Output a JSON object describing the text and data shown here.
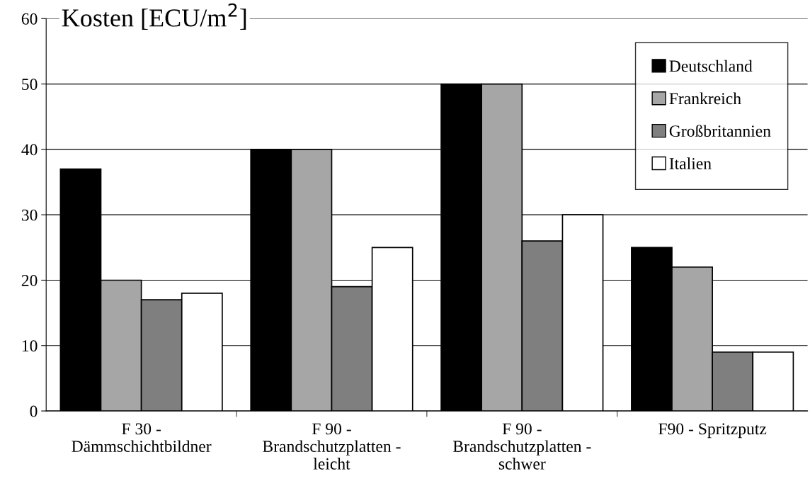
{
  "chart_data": {
    "type": "bar",
    "title": "Kosten [ECU/m$^{2}$]",
    "categories": [
      "F 30 -\nDämmschichtbildner",
      "F 90 -\nBrandschutzplatten -\nleicht",
      "F 90 -\nBrandschutzplatten -\nschwer",
      "F90 - Spritzputz"
    ],
    "series": [
      {
        "name": "Deutschland",
        "color": "#000000",
        "values": [
          37,
          40,
          50,
          25
        ]
      },
      {
        "name": "Frankreich",
        "color": "#a6a6a6",
        "values": [
          20,
          40,
          50,
          22
        ]
      },
      {
        "name": "Großbritannien",
        "color": "#7f7f7f",
        "values": [
          17,
          19,
          26,
          9
        ]
      },
      {
        "name": "Italien",
        "color": "#ffffff",
        "values": [
          18,
          25,
          30,
          9
        ]
      }
    ],
    "ylim": [
      0,
      60
    ],
    "yticks": [
      0,
      10,
      20,
      30,
      40,
      50,
      60
    ],
    "grid": "y",
    "legend": "top right"
  }
}
